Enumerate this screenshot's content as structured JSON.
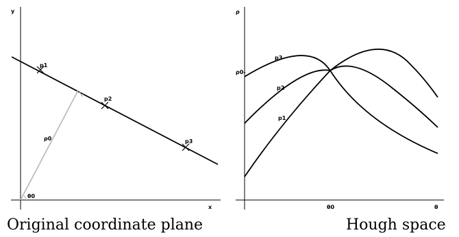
{
  "left_panel": {
    "axis_x_label": "x",
    "axis_y_label": "y",
    "points": [
      "p1",
      "p2",
      "p3"
    ],
    "normal_label": "ρ0",
    "angle_label": "θ0",
    "caption": "Original coordinate plane"
  },
  "right_panel": {
    "axis_x_label": "θ",
    "axis_y_label": "ρ",
    "rho0_tick_label": "ρ0-",
    "theta0_tick_label": "θ0",
    "curves": [
      "p1",
      "p2",
      "p3"
    ],
    "caption": "Hough space"
  },
  "colors": {
    "lines": "#000000",
    "normal": "#bdbdbd",
    "background": "#ffffff"
  }
}
